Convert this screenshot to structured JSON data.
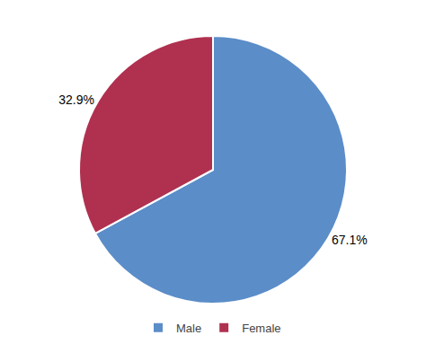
{
  "chart_data": {
    "type": "pie",
    "categories": [
      "Male",
      "Female"
    ],
    "values": [
      67.1,
      32.9
    ],
    "value_labels": [
      "67.1%",
      "32.9%"
    ],
    "colors": [
      "#5B8DC8",
      "#B03050"
    ],
    "data_labels": true,
    "legend": "bottom"
  }
}
